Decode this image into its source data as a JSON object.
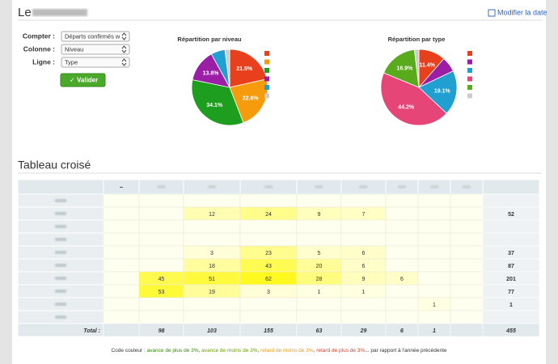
{
  "header": {
    "title": "Le",
    "link": "Modifier la date"
  },
  "form": {
    "fields": [
      {
        "label": "Compter :",
        "value": "Départs confirmés w"
      },
      {
        "label": "Colonne :",
        "value": "Niveau"
      },
      {
        "label": "Ligne :",
        "value": "Type"
      }
    ],
    "button": "Valider"
  },
  "charts": [
    {
      "type": "pie",
      "title": "Répartition par niveau",
      "values": [
        21.5,
        22.6,
        34.1,
        13.8,
        6.0,
        2.0
      ],
      "value_labels": [
        "21.5%",
        "22.6%",
        "34.1%",
        "13.8%",
        null,
        null
      ],
      "colors": [
        "#e8401c",
        "#f59b0c",
        "#1e9e1e",
        "#9b1fa6",
        "#1fa0d0",
        "#cccccc"
      ]
    },
    {
      "type": "pie",
      "title": "Répartition par type",
      "values": [
        11.4,
        6.5,
        19.1,
        44.2,
        16.9,
        1.9
      ],
      "value_labels": [
        "11.4%",
        null,
        "19.1%",
        "44.2%",
        "16.9%",
        null
      ],
      "colors": [
        "#e8401c",
        "#9b1fa6",
        "#1fa0d0",
        "#e64578",
        "#5aaa1e",
        "#cccccc"
      ]
    }
  ],
  "table": {
    "title": "Tableau croisé",
    "columns": [
      "–",
      null,
      null,
      null,
      null,
      null,
      null,
      null,
      null,
      null
    ],
    "rows": [
      {
        "label": null,
        "cells": [
          null,
          null,
          null,
          null,
          null,
          null,
          null,
          null,
          null,
          null
        ]
      },
      {
        "label": null,
        "cells": [
          null,
          null,
          12,
          24,
          9,
          7,
          null,
          null,
          null,
          52
        ]
      },
      {
        "label": null,
        "cells": [
          null,
          null,
          null,
          null,
          null,
          null,
          null,
          null,
          null,
          null
        ]
      },
      {
        "label": null,
        "cells": [
          null,
          null,
          null,
          null,
          null,
          null,
          null,
          null,
          null,
          null
        ]
      },
      {
        "label": null,
        "cells": [
          null,
          null,
          3,
          23,
          5,
          6,
          null,
          null,
          null,
          37
        ]
      },
      {
        "label": null,
        "cells": [
          null,
          null,
          18,
          43,
          20,
          6,
          null,
          null,
          null,
          87
        ]
      },
      {
        "label": null,
        "cells": [
          null,
          45,
          51,
          62,
          28,
          9,
          6,
          null,
          null,
          201
        ]
      },
      {
        "label": null,
        "cells": [
          null,
          53,
          19,
          3,
          1,
          1,
          null,
          null,
          null,
          77
        ]
      },
      {
        "label": null,
        "cells": [
          null,
          null,
          null,
          null,
          null,
          null,
          null,
          1,
          null,
          1
        ]
      },
      {
        "label": null,
        "cells": [
          null,
          null,
          null,
          null,
          null,
          null,
          null,
          null,
          null,
          null
        ]
      }
    ],
    "total": {
      "label": "Total :",
      "cells": [
        null,
        98,
        103,
        155,
        63,
        29,
        6,
        1,
        null,
        455
      ]
    }
  },
  "footer": [
    {
      "text": "Code couleur : ",
      "color": "#333333"
    },
    {
      "text": "avance de plus de 3%",
      "color": "#2e8b00"
    },
    {
      "text": ", ",
      "color": "#333333"
    },
    {
      "text": "avance de moins de 3%",
      "color": "#6a9e00"
    },
    {
      "text": ", ",
      "color": "#333333"
    },
    {
      "text": "retard de moins de 3%",
      "color": "#f0961a"
    },
    {
      "text": ", ",
      "color": "#333333"
    },
    {
      "text": "retard de plus de 3%",
      "color": "#e03a1e"
    },
    {
      "text": "... par rapport à l'année précédente",
      "color": "#333333"
    }
  ]
}
